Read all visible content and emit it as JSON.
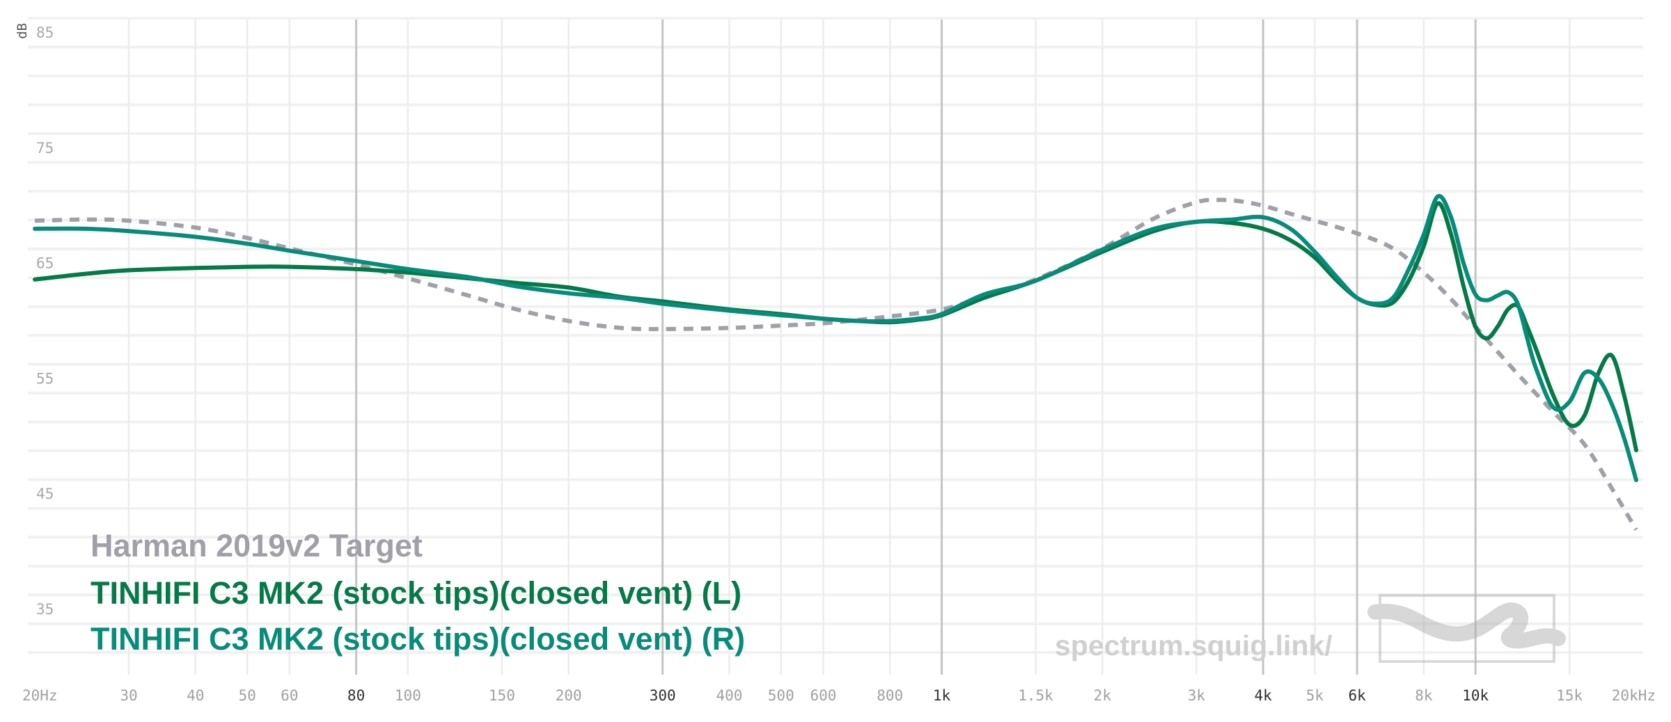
{
  "chart_data": {
    "type": "line",
    "xscale": "log",
    "yunit": "dB",
    "xlim": [
      20,
      20000
    ],
    "ylim": [
      30,
      87
    ],
    "y_ticks": [
      85,
      75,
      65,
      55,
      45,
      35
    ],
    "x_ticks": [
      {
        "f": 20,
        "label": "20Hz",
        "major": false
      },
      {
        "f": 30,
        "label": "30",
        "major": false
      },
      {
        "f": 40,
        "label": "40",
        "major": false
      },
      {
        "f": 50,
        "label": "50",
        "major": false
      },
      {
        "f": 60,
        "label": "60",
        "major": false
      },
      {
        "f": 80,
        "label": "80",
        "major": true
      },
      {
        "f": 100,
        "label": "100",
        "major": false
      },
      {
        "f": 150,
        "label": "150",
        "major": false
      },
      {
        "f": 200,
        "label": "200",
        "major": false
      },
      {
        "f": 300,
        "label": "300",
        "major": true
      },
      {
        "f": 400,
        "label": "400",
        "major": false
      },
      {
        "f": 500,
        "label": "500",
        "major": false
      },
      {
        "f": 600,
        "label": "600",
        "major": false
      },
      {
        "f": 800,
        "label": "800",
        "major": false
      },
      {
        "f": 1000,
        "label": "1k",
        "major": true
      },
      {
        "f": 1500,
        "label": "1.5k",
        "major": false
      },
      {
        "f": 2000,
        "label": "2k",
        "major": false
      },
      {
        "f": 3000,
        "label": "3k",
        "major": false
      },
      {
        "f": 4000,
        "label": "4k",
        "major": true
      },
      {
        "f": 5000,
        "label": "5k",
        "major": false
      },
      {
        "f": 6000,
        "label": "6k",
        "major": true
      },
      {
        "f": 8000,
        "label": "8k",
        "major": false
      },
      {
        "f": 10000,
        "label": "10k",
        "major": true
      },
      {
        "f": 15000,
        "label": "15k",
        "major": false
      },
      {
        "f": 20000,
        "label": "20kHz",
        "major": false
      }
    ],
    "series": [
      {
        "name": "Harman 2019v2 Target",
        "color": "#a19fa7",
        "dashed": true,
        "x": [
          20,
          25,
          30,
          40,
          50,
          60,
          80,
          100,
          130,
          160,
          200,
          250,
          300,
          400,
          500,
          600,
          700,
          800,
          1000,
          1200,
          1500,
          2000,
          2500,
          3000,
          3300,
          3600,
          4000,
          4500,
          5000,
          6000,
          7000,
          8000,
          9000,
          10000,
          12000,
          14000,
          16000,
          18000,
          20000
        ],
        "y": [
          68.7,
          68.8,
          68.7,
          68.1,
          67.2,
          66.3,
          64.9,
          63.7,
          62.2,
          61.0,
          60.0,
          59.4,
          59.3,
          59.4,
          59.6,
          59.8,
          60.1,
          60.4,
          61.0,
          62.1,
          63.6,
          66.3,
          68.9,
          70.3,
          70.5,
          70.4,
          70.0,
          69.3,
          68.7,
          67.6,
          66.3,
          64.2,
          61.9,
          59.5,
          55.4,
          52.1,
          49.3,
          45.5,
          41.9
        ]
      },
      {
        "name": "TINHIFI C3 MK2 (stock tips)(closed vent) (L)",
        "color": "#057a48",
        "dashed": false,
        "x": [
          20,
          25,
          30,
          40,
          50,
          60,
          80,
          100,
          130,
          160,
          200,
          250,
          300,
          400,
          500,
          600,
          700,
          800,
          900,
          1000,
          1200,
          1500,
          2000,
          2500,
          3000,
          3500,
          4000,
          4500,
          5000,
          5500,
          6000,
          6500,
          7000,
          7500,
          8000,
          8500,
          9000,
          9500,
          10000,
          10500,
          11000,
          11500,
          12000,
          12500,
          13000,
          14000,
          15000,
          16000,
          17000,
          18000,
          19000,
          20000
        ],
        "y": [
          63.6,
          64.1,
          64.4,
          64.6,
          64.7,
          64.7,
          64.5,
          64.2,
          63.7,
          63.3,
          62.9,
          62.1,
          61.7,
          61.0,
          60.6,
          60.2,
          60.0,
          59.9,
          60.1,
          60.5,
          62.0,
          63.5,
          66.0,
          67.8,
          68.6,
          68.5,
          68.0,
          67.0,
          65.5,
          63.5,
          62.0,
          61.4,
          61.6,
          63.5,
          66.5,
          70.2,
          67.5,
          63.0,
          59.5,
          58.5,
          59.5,
          61.0,
          61.3,
          59.5,
          57.5,
          53.5,
          51.0,
          51.8,
          55.5,
          57.0,
          53.5,
          48.8
        ]
      },
      {
        "name": "TINHIFI C3 MK2 (stock tips)(closed vent) (R)",
        "color": "#088c7a",
        "dashed": false,
        "x": [
          20,
          25,
          30,
          40,
          50,
          60,
          80,
          100,
          130,
          160,
          200,
          250,
          300,
          400,
          500,
          600,
          700,
          800,
          900,
          1000,
          1200,
          1500,
          2000,
          2500,
          3000,
          3500,
          4000,
          4500,
          5000,
          5500,
          6000,
          6500,
          7000,
          7500,
          8000,
          8500,
          9000,
          9500,
          10000,
          10500,
          11000,
          11500,
          12000,
          12500,
          13000,
          14000,
          15000,
          16000,
          17000,
          18000,
          19000,
          20000
        ],
        "y": [
          68.0,
          68.0,
          67.8,
          67.3,
          66.7,
          66.1,
          65.2,
          64.5,
          63.8,
          63.0,
          62.4,
          62.0,
          61.5,
          60.9,
          60.5,
          60.2,
          60.0,
          60.0,
          60.2,
          60.6,
          62.3,
          63.5,
          66.2,
          68.0,
          68.6,
          68.8,
          69.0,
          68.0,
          66.0,
          63.8,
          62.0,
          61.5,
          62.0,
          64.5,
          67.5,
          70.8,
          69.0,
          65.0,
          62.3,
          61.8,
          62.2,
          62.5,
          61.5,
          58.5,
          55.8,
          52.5,
          53.0,
          55.5,
          55.0,
          52.8,
          49.8,
          46.2
        ]
      }
    ],
    "legend_position": "bottom-left",
    "watermark": "spectrum.squig.link/"
  }
}
